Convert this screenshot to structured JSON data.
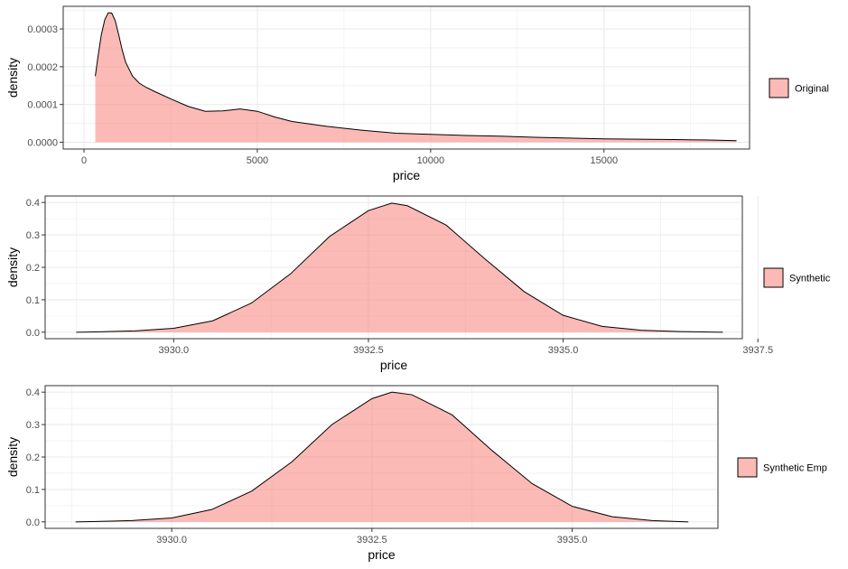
{
  "colors": {
    "fill": "#f8766d",
    "fill_opacity": 0.5,
    "line": "#000000",
    "grid": "#ebebeb",
    "panel_border": "#333333",
    "background": "#ffffff"
  },
  "chart_data": [
    {
      "type": "area",
      "xlabel": "price",
      "ylabel": "density",
      "xlim": [
        -600,
        19200
      ],
      "ylim": [
        -1.8e-05,
        0.00036
      ],
      "xticks": [
        0,
        5000,
        10000,
        15000
      ],
      "xtick_labels": [
        "0",
        "5000",
        "10000",
        "15000"
      ],
      "yticks": [
        0,
        0.0001,
        0.0002,
        0.0003
      ],
      "ytick_labels": [
        "0.0000",
        "0.0001",
        "0.0002",
        "0.0003"
      ],
      "grid": true,
      "legend": {
        "position": "right",
        "label": "Original"
      },
      "series": [
        {
          "name": "Original",
          "x": [
            326,
            400,
            500,
            600,
            700,
            800,
            900,
            1000,
            1100,
            1200,
            1400,
            1600,
            1800,
            2000,
            2500,
            3000,
            3500,
            4000,
            4500,
            5000,
            5500,
            6000,
            7000,
            8000,
            9000,
            10000,
            11000,
            12000,
            13000,
            14000,
            15000,
            16000,
            17000,
            18000,
            18823
          ],
          "y": [
            0.000175,
            0.000225,
            0.000285,
            0.000325,
            0.000343,
            0.000342,
            0.000322,
            0.000285,
            0.000245,
            0.000212,
            0.000175,
            0.000156,
            0.000145,
            0.000136,
            0.000115,
            9.5e-05,
            8.2e-05,
            8.3e-05,
            8.8e-05,
            8.2e-05,
            6.7e-05,
            5.5e-05,
            4.2e-05,
            3.2e-05,
            2.4e-05,
            2.1e-05,
            1.8e-05,
            1.6e-05,
            1.3e-05,
            1.1e-05,
            9e-06,
            8e-06,
            7e-06,
            6e-06,
            4e-06
          ]
        }
      ]
    },
    {
      "type": "area",
      "xlabel": "price",
      "ylabel": "density",
      "xlim": [
        3928.35,
        3937.3
      ],
      "ylim": [
        -0.02,
        0.42
      ],
      "xticks": [
        3930.0,
        3932.5,
        3935.0,
        3937.5
      ],
      "xtick_labels": [
        "3930.0",
        "3932.5",
        "3935.0",
        "3937.5"
      ],
      "yticks": [
        0,
        0.1,
        0.2,
        0.3,
        0.4
      ],
      "ytick_labels": [
        "0.0",
        "0.1",
        "0.2",
        "0.3",
        "0.4"
      ],
      "grid": true,
      "legend": {
        "position": "right",
        "label": "Synthetic"
      },
      "series": [
        {
          "name": "Synthetic",
          "x": [
            3928.75,
            3929.0,
            3929.5,
            3930.0,
            3930.5,
            3931.0,
            3931.5,
            3932.0,
            3932.5,
            3932.8,
            3933.0,
            3933.5,
            3934.0,
            3934.5,
            3935.0,
            3935.5,
            3936.0,
            3936.5,
            3937.05
          ],
          "y": [
            0.0,
            0.001,
            0.004,
            0.012,
            0.035,
            0.09,
            0.18,
            0.295,
            0.375,
            0.398,
            0.39,
            0.33,
            0.225,
            0.125,
            0.052,
            0.018,
            0.006,
            0.002,
            0.0
          ]
        }
      ]
    },
    {
      "type": "area",
      "xlabel": "price",
      "ylabel": "density",
      "xlim": [
        3928.42,
        3936.82
      ],
      "ylim": [
        -0.02,
        0.42
      ],
      "xticks": [
        3930.0,
        3932.5,
        3935.0
      ],
      "xtick_labels": [
        "3930.0",
        "3932.5",
        "3935.0"
      ],
      "yticks": [
        0,
        0.1,
        0.2,
        0.3,
        0.4
      ],
      "ytick_labels": [
        "0.0",
        "0.1",
        "0.2",
        "0.3",
        "0.4"
      ],
      "grid": true,
      "legend": {
        "position": "right",
        "label": "Synthetic Emp"
      },
      "series": [
        {
          "name": "Synthetic Emp",
          "x": [
            3928.8,
            3929.0,
            3929.5,
            3930.0,
            3930.5,
            3931.0,
            3931.5,
            3932.0,
            3932.5,
            3932.75,
            3933.0,
            3933.5,
            3934.0,
            3934.5,
            3935.0,
            3935.5,
            3936.0,
            3936.45
          ],
          "y": [
            0.0,
            0.001,
            0.004,
            0.012,
            0.038,
            0.095,
            0.185,
            0.3,
            0.38,
            0.4,
            0.392,
            0.33,
            0.22,
            0.118,
            0.048,
            0.016,
            0.004,
            0.0
          ]
        }
      ]
    }
  ]
}
